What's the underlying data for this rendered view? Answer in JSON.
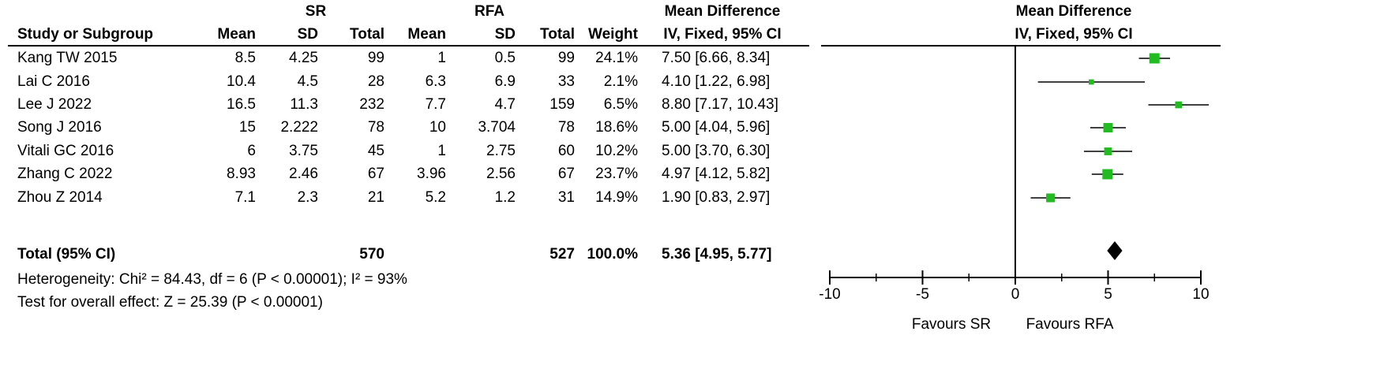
{
  "table": {
    "group_headers": {
      "sr": "SR",
      "rfa": "RFA",
      "effect": "Mean Difference"
    },
    "columns": {
      "study": "Study or Subgroup",
      "sr_mean": "Mean",
      "sr_sd": "SD",
      "sr_total": "Total",
      "rfa_mean": "Mean",
      "rfa_sd": "SD",
      "rfa_total": "Total",
      "weight": "Weight",
      "effect": "IV, Fixed, 95% CI"
    },
    "rows": [
      {
        "study": "Kang TW 2015",
        "sr_mean": "8.5",
        "sr_sd": "4.25",
        "sr_total": "99",
        "rfa_mean": "1",
        "rfa_sd": "0.5",
        "rfa_total": "99",
        "weight": "24.1%",
        "ci": "7.50 [6.66, 8.34]"
      },
      {
        "study": "Lai C 2016",
        "sr_mean": "10.4",
        "sr_sd": "4.5",
        "sr_total": "28",
        "rfa_mean": "6.3",
        "rfa_sd": "6.9",
        "rfa_total": "33",
        "weight": "2.1%",
        "ci": "4.10 [1.22, 6.98]"
      },
      {
        "study": "Lee J 2022",
        "sr_mean": "16.5",
        "sr_sd": "11.3",
        "sr_total": "232",
        "rfa_mean": "7.7",
        "rfa_sd": "4.7",
        "rfa_total": "159",
        "weight": "6.5%",
        "ci": "8.80 [7.17, 10.43]"
      },
      {
        "study": "Song J 2016",
        "sr_mean": "15",
        "sr_sd": "2.222",
        "sr_total": "78",
        "rfa_mean": "10",
        "rfa_sd": "3.704",
        "rfa_total": "78",
        "weight": "18.6%",
        "ci": "5.00 [4.04, 5.96]"
      },
      {
        "study": "Vitali GC 2016",
        "sr_mean": "6",
        "sr_sd": "3.75",
        "sr_total": "45",
        "rfa_mean": "1",
        "rfa_sd": "2.75",
        "rfa_total": "60",
        "weight": "10.2%",
        "ci": "5.00 [3.70, 6.30]"
      },
      {
        "study": "Zhang C 2022",
        "sr_mean": "8.93",
        "sr_sd": "2.46",
        "sr_total": "67",
        "rfa_mean": "3.96",
        "rfa_sd": "2.56",
        "rfa_total": "67",
        "weight": "23.7%",
        "ci": "4.97 [4.12, 5.82]"
      },
      {
        "study": "Zhou Z 2014",
        "sr_mean": "7.1",
        "sr_sd": "2.3",
        "sr_total": "21",
        "rfa_mean": "5.2",
        "rfa_sd": "1.2",
        "rfa_total": "31",
        "weight": "14.9%",
        "ci": "1.90 [0.83, 2.97]"
      }
    ],
    "total": {
      "label": "Total (95% CI)",
      "sr_total": "570",
      "rfa_total": "527",
      "weight": "100.0%",
      "ci": "5.36 [4.95, 5.77]"
    },
    "heterogeneity": "Heterogeneity: Chi² = 84.43, df = 6 (P < 0.00001); I² = 93%",
    "overall_effect": "Test for overall effect: Z = 25.39 (P < 0.00001)"
  },
  "chart_data": {
    "type": "scatter",
    "title": "Mean Difference",
    "subtitle": "IV, Fixed, 95% CI",
    "xlim": [
      -10,
      10
    ],
    "xticks": [
      "-10",
      "-5",
      "0",
      "5",
      "10"
    ],
    "favours_left": "Favours SR",
    "favours_right": "Favours RFA",
    "studies": [
      {
        "name": "Kang TW 2015",
        "md": 7.5,
        "lower": 6.66,
        "upper": 8.34,
        "weight": 24.1
      },
      {
        "name": "Lai C 2016",
        "md": 4.1,
        "lower": 1.22,
        "upper": 6.98,
        "weight": 2.1
      },
      {
        "name": "Lee J 2022",
        "md": 8.8,
        "lower": 7.17,
        "upper": 10.43,
        "weight": 6.5
      },
      {
        "name": "Song J 2016",
        "md": 5.0,
        "lower": 4.04,
        "upper": 5.96,
        "weight": 18.6
      },
      {
        "name": "Vitali GC 2016",
        "md": 5.0,
        "lower": 3.7,
        "upper": 6.3,
        "weight": 10.2
      },
      {
        "name": "Zhang C 2022",
        "md": 4.97,
        "lower": 4.12,
        "upper": 5.82,
        "weight": 23.7
      },
      {
        "name": "Zhou Z 2014",
        "md": 1.9,
        "lower": 0.83,
        "upper": 2.97,
        "weight": 14.9
      }
    ],
    "pooled": {
      "md": 5.36,
      "lower": 4.95,
      "upper": 5.77
    },
    "colors": {
      "marker": "#22bb22",
      "diamond": "#000000",
      "line": "#000000"
    }
  }
}
